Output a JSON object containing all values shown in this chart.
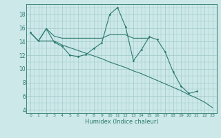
{
  "xlabel": "Humidex (Indice chaleur)",
  "xlim": [
    -0.5,
    23.5
  ],
  "ylim": [
    3.5,
    19.5
  ],
  "yticks": [
    4,
    6,
    8,
    10,
    12,
    14,
    16,
    18
  ],
  "xticks": [
    0,
    1,
    2,
    3,
    4,
    5,
    6,
    7,
    8,
    9,
    10,
    11,
    12,
    13,
    14,
    15,
    16,
    17,
    18,
    19,
    20,
    21,
    22,
    23
  ],
  "bg_color": "#cce8e8",
  "line_color": "#2d7a6e",
  "grid_color": "#a0c8c8",
  "series": [
    {
      "x": [
        0,
        1,
        2,
        3,
        4,
        5,
        6,
        7,
        8,
        9,
        10,
        11,
        12,
        13,
        14,
        15,
        16,
        17,
        18,
        19,
        20,
        21
      ],
      "y": [
        15.3,
        14.1,
        15.9,
        13.9,
        13.3,
        12.0,
        11.8,
        12.1,
        13.0,
        13.8,
        18.0,
        19.0,
        16.2,
        11.2,
        12.8,
        14.7,
        14.3,
        12.5,
        9.6,
        7.5,
        6.4,
        6.7
      ]
    },
    {
      "x": [
        0,
        1,
        2,
        3,
        4,
        5,
        6,
        7,
        8,
        9,
        10,
        11,
        12,
        13,
        14,
        15
      ],
      "y": [
        15.3,
        14.1,
        15.9,
        14.8,
        14.5,
        14.5,
        14.5,
        14.5,
        14.5,
        14.5,
        15.0,
        15.0,
        15.0,
        14.5,
        14.5,
        14.5
      ]
    },
    {
      "x": [
        0,
        1,
        2,
        3,
        4,
        5,
        6,
        7,
        8,
        9,
        10,
        11,
        12,
        13,
        14,
        15,
        16,
        17,
        18,
        19,
        20,
        21,
        22,
        23
      ],
      "y": [
        15.3,
        14.1,
        14.1,
        14.1,
        13.5,
        13.1,
        12.7,
        12.3,
        11.9,
        11.5,
        11.0,
        10.6,
        10.2,
        9.7,
        9.3,
        8.8,
        8.3,
        7.8,
        7.3,
        6.8,
        6.2,
        5.7,
        5.1,
        4.3
      ]
    }
  ]
}
